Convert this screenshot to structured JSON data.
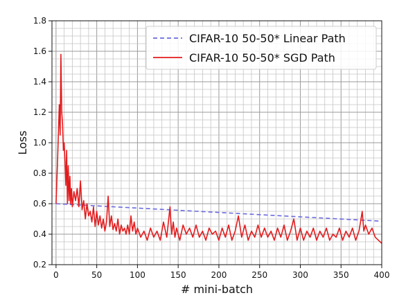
{
  "chart_data": {
    "type": "line",
    "xlabel": "# mini-batch",
    "ylabel": "Loss",
    "xlim": [
      -5,
      400
    ],
    "ylim": [
      0.2,
      1.8
    ],
    "x_ticks": [
      0,
      50,
      100,
      150,
      200,
      250,
      300,
      350,
      400
    ],
    "y_ticks": [
      0.2,
      0.4,
      0.6,
      0.8,
      1.0,
      1.2,
      1.4,
      1.6,
      1.8
    ],
    "x_tick_labels": [
      "0",
      "50",
      "100",
      "150",
      "200",
      "250",
      "300",
      "350",
      "400"
    ],
    "y_tick_labels": [
      "0.2",
      "0.4",
      "0.6",
      "0.8",
      "1.0",
      "1.2",
      "1.4",
      "1.6",
      "1.8"
    ],
    "grid": true,
    "grid_minor": true,
    "legend_position": "top-right",
    "series": [
      {
        "name": "CIFAR-10 50-50* Linear Path",
        "style": "dashed",
        "color": "#6a6adf",
        "x": [
          0,
          400
        ],
        "y": [
          0.6,
          0.485
        ]
      },
      {
        "name": "CIFAR-10 50-50* SGD Path",
        "style": "solid",
        "color": "#e41a1c",
        "x": [
          0,
          2,
          4,
          5,
          6,
          7,
          8,
          9,
          10,
          11,
          12,
          13,
          14,
          15,
          16,
          17,
          18,
          19,
          20,
          22,
          24,
          26,
          28,
          30,
          32,
          34,
          36,
          38,
          40,
          42,
          44,
          46,
          48,
          50,
          52,
          54,
          56,
          58,
          60,
          62,
          64,
          66,
          68,
          70,
          72,
          74,
          76,
          78,
          80,
          82,
          84,
          86,
          88,
          90,
          92,
          94,
          96,
          98,
          100,
          104,
          108,
          112,
          116,
          120,
          124,
          128,
          132,
          136,
          140,
          142,
          144,
          146,
          148,
          152,
          156,
          160,
          164,
          168,
          172,
          176,
          180,
          184,
          188,
          192,
          196,
          200,
          204,
          208,
          212,
          216,
          220,
          224,
          228,
          232,
          236,
          240,
          244,
          248,
          252,
          256,
          260,
          264,
          268,
          272,
          276,
          280,
          284,
          288,
          292,
          296,
          300,
          304,
          308,
          312,
          316,
          320,
          324,
          328,
          332,
          336,
          340,
          344,
          348,
          352,
          356,
          360,
          364,
          368,
          372,
          374,
          376,
          378,
          380,
          384,
          388,
          392,
          396,
          400
        ],
        "y": [
          0.6,
          0.9,
          1.25,
          1.05,
          1.58,
          1.2,
          1.12,
          0.95,
          1.0,
          0.88,
          0.72,
          0.95,
          0.6,
          0.85,
          0.62,
          0.78,
          0.6,
          0.7,
          0.58,
          0.68,
          0.62,
          0.7,
          0.58,
          0.75,
          0.56,
          0.62,
          0.5,
          0.6,
          0.52,
          0.55,
          0.48,
          0.58,
          0.45,
          0.55,
          0.46,
          0.52,
          0.44,
          0.5,
          0.42,
          0.48,
          0.65,
          0.45,
          0.52,
          0.43,
          0.47,
          0.42,
          0.5,
          0.4,
          0.46,
          0.42,
          0.44,
          0.4,
          0.46,
          0.4,
          0.52,
          0.42,
          0.48,
          0.4,
          0.44,
          0.38,
          0.42,
          0.36,
          0.44,
          0.38,
          0.42,
          0.36,
          0.48,
          0.38,
          0.58,
          0.4,
          0.48,
          0.38,
          0.44,
          0.36,
          0.46,
          0.4,
          0.44,
          0.38,
          0.46,
          0.38,
          0.42,
          0.36,
          0.44,
          0.4,
          0.42,
          0.36,
          0.44,
          0.38,
          0.46,
          0.36,
          0.42,
          0.52,
          0.38,
          0.46,
          0.36,
          0.42,
          0.38,
          0.46,
          0.38,
          0.44,
          0.38,
          0.42,
          0.36,
          0.44,
          0.38,
          0.46,
          0.36,
          0.42,
          0.5,
          0.36,
          0.44,
          0.36,
          0.42,
          0.38,
          0.44,
          0.36,
          0.42,
          0.38,
          0.44,
          0.36,
          0.4,
          0.38,
          0.44,
          0.36,
          0.42,
          0.38,
          0.44,
          0.36,
          0.42,
          0.48,
          0.55,
          0.42,
          0.46,
          0.4,
          0.44,
          0.38,
          0.36,
          0.34
        ]
      }
    ]
  }
}
